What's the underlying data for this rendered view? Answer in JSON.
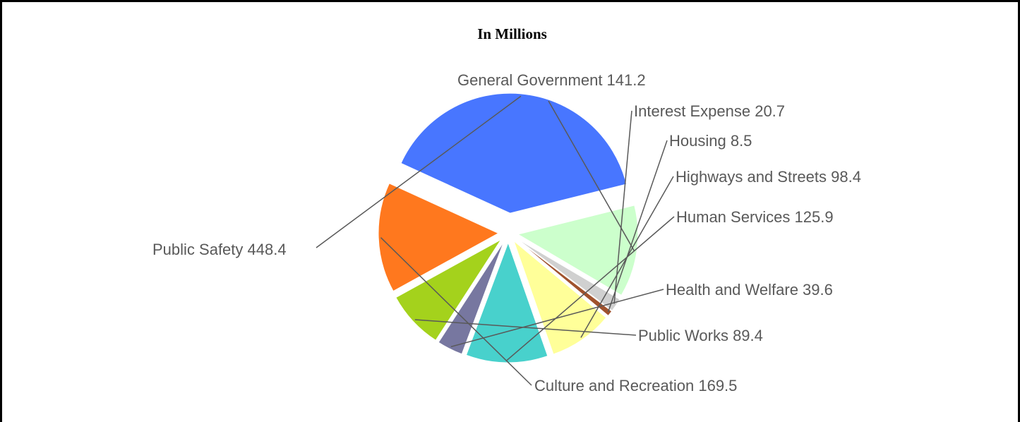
{
  "chart_data": {
    "type": "pie",
    "title": "In Millions",
    "slices": [
      {
        "name": "General Government",
        "value": 141.2,
        "value_label": "141.2",
        "color": "#ccffcc"
      },
      {
        "name": "Interest Expense",
        "value": 20.7,
        "value_label": "20.7",
        "color": "#d0d0d0"
      },
      {
        "name": "Housing",
        "value": 8.5,
        "value_label": "8.5",
        "color": "#a0522d"
      },
      {
        "name": "Highways and Streets",
        "value": 98.4,
        "value_label": "98.4",
        "color": "#ffff99"
      },
      {
        "name": "Human Services",
        "value": 125.9,
        "value_label": "125.9",
        "color": "#48d1cc"
      },
      {
        "name": "Health and Welfare",
        "value": 39.6,
        "value_label": "39.6",
        "color": "#7777a0"
      },
      {
        "name": "Public Works",
        "value": 89.4,
        "value_label": "89.4",
        "color": "#a4d21c"
      },
      {
        "name": "Culture and Recreation",
        "value": 169.5,
        "value_label": "169.5",
        "color": "#ff781e"
      },
      {
        "name": "Public Safety",
        "value": 448.4,
        "value_label": "448.4",
        "color": "#4876ff"
      }
    ],
    "start_angle_deg": 76,
    "direction": "clockwise",
    "exploded": true,
    "legend": "none",
    "data_labels": "outside-with-leader-lines",
    "label_color": "#595959",
    "leader_color": "#595959"
  }
}
